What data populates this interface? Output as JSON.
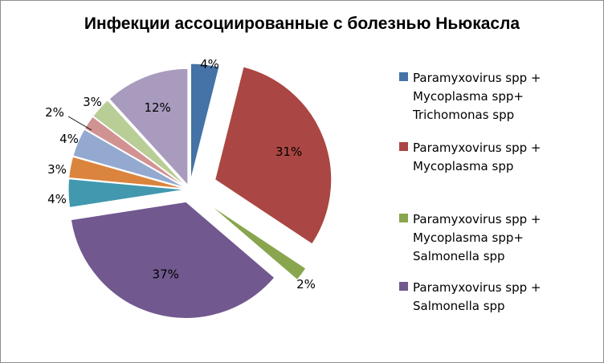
{
  "chart_data": {
    "type": "pie",
    "title": "Инфекции ассоциированные  с болезнью Ньюкасла",
    "slices": [
      {
        "value": 4,
        "label": "4%",
        "color": "#4572a7"
      },
      {
        "value": 31,
        "label": "31%",
        "color": "#aa4643"
      },
      {
        "value": 2,
        "label": "2%",
        "color": "#89a54e"
      },
      {
        "value": 37,
        "label": "37%",
        "color": "#71588f"
      },
      {
        "value": 4,
        "label": "4%",
        "color": "#4198af"
      },
      {
        "value": 3,
        "label": "3%",
        "color": "#db843d"
      },
      {
        "value": 4,
        "label": "4%",
        "color": "#93a9cf"
      },
      {
        "value": 2,
        "label": "2%",
        "color": "#d19392"
      },
      {
        "value": 3,
        "label": "3%",
        "color": "#b9cd96"
      },
      {
        "value": 12,
        "label": "12%",
        "color": "#a99bbd"
      }
    ],
    "legend": [
      {
        "label": "Paramyxovirus spp +\nMycoplasma spp+\nTrichomonas spp",
        "color": "#4572a7"
      },
      {
        "label": "Paramyxovirus spp +\nMycoplasma  spp",
        "color": "#aa4643"
      },
      {
        "label": "Paramyxovirus spp  +\nMycoplasma spp+\nSalmonella spp",
        "color": "#89a54e"
      },
      {
        "label": "Paramyxovirus spp  +\nSalmonella spp",
        "color": "#71588f"
      }
    ],
    "legend_position": "right"
  }
}
